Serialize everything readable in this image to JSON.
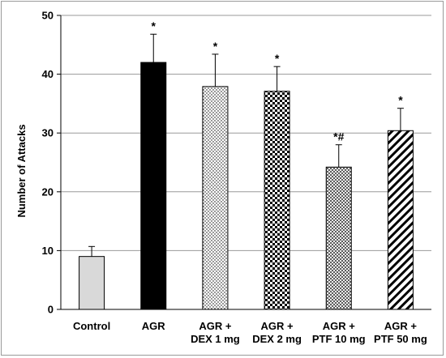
{
  "chart_data": {
    "type": "bar",
    "title": "",
    "xlabel": "",
    "ylabel": "Number of Attacks",
    "ylim": [
      0,
      50
    ],
    "yticks": [
      0,
      10,
      20,
      30,
      40,
      50
    ],
    "grid": true,
    "legend": "none",
    "categories": [
      [
        "Control"
      ],
      [
        "AGR"
      ],
      [
        "AGR +",
        "DEX 1 mg"
      ],
      [
        "AGR +",
        "DEX 2 mg"
      ],
      [
        "AGR +",
        "PTF 10 mg"
      ],
      [
        "AGR +",
        "PTF 50 mg"
      ]
    ],
    "values": [
      9.0,
      42.0,
      37.9,
      37.1,
      24.2,
      30.4
    ],
    "error": [
      1.7,
      4.8,
      5.5,
      4.2,
      3.8,
      3.8
    ],
    "annotations": [
      "",
      "*",
      "*",
      "*",
      "*#",
      "*"
    ],
    "fills": [
      "solid-lightgray",
      "solid-black",
      "fine-dots",
      "checker",
      "dense-crosshatch",
      "diagonal-stripes"
    ],
    "colors": {
      "control_fill": "#d9d9d9",
      "agr_fill": "#000000",
      "grid": "#9a9a9a",
      "axis": "#000000"
    }
  }
}
